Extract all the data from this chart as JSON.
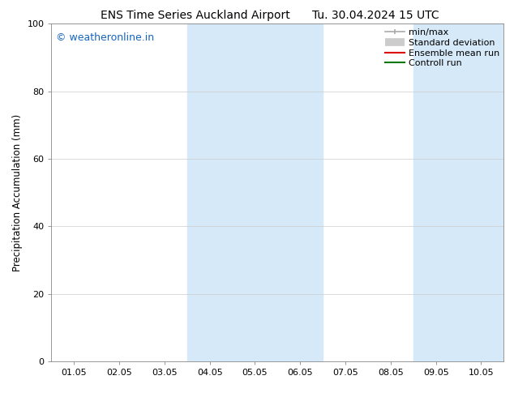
{
  "title_left": "ENS Time Series Auckland Airport",
  "title_right": "Tu. 30.04.2024 15 UTC",
  "ylabel": "Precipitation Accumulation (mm)",
  "ylim": [
    0,
    100
  ],
  "yticks": [
    0,
    20,
    40,
    60,
    80,
    100
  ],
  "xtick_labels": [
    "01.05",
    "02.05",
    "03.05",
    "04.05",
    "05.05",
    "06.05",
    "07.05",
    "08.05",
    "09.05",
    "10.05"
  ],
  "watermark": "© weatheronline.in",
  "watermark_color": "#1565c0",
  "shade_bands": [
    {
      "xstart": 3.0,
      "xend": 5.0
    },
    {
      "xstart": 8.0,
      "xend": 9.5
    }
  ],
  "shade_color": "#d6e9f8",
  "legend_labels": [
    "min/max",
    "Standard deviation",
    "Ensemble mean run",
    "Controll run"
  ],
  "legend_colors": [
    "#aaaaaa",
    "#cccccc",
    "#dd0000",
    "#007700"
  ],
  "bg_color": "#ffffff",
  "grid_color": "#cccccc",
  "title_fontsize": 10,
  "tick_label_fontsize": 8,
  "ylabel_fontsize": 8.5,
  "watermark_fontsize": 9,
  "legend_fontsize": 8
}
